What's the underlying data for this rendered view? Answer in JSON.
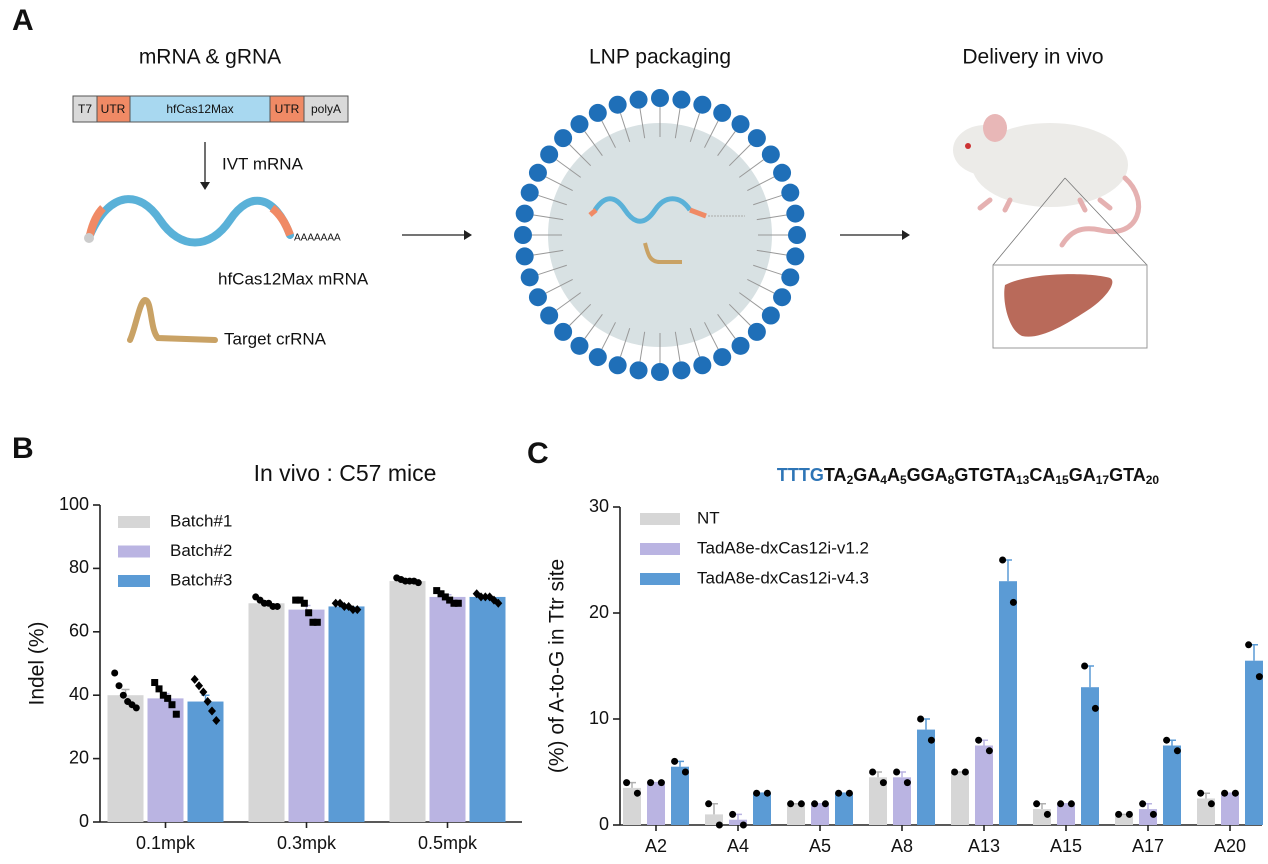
{
  "panel_a": {
    "label": "A",
    "steps": [
      "mRNA & gRNA",
      "LNP packaging",
      "Delivery in vivo"
    ],
    "construct": [
      "T7",
      "UTR",
      "hfCas12Max",
      "UTR",
      "polyA"
    ],
    "ivt": "IVT mRNA",
    "tail": "AAAAAAA",
    "mrna": "hfCas12Max mRNA",
    "crna": "Target crRNA"
  },
  "panel_labels": [
    "B",
    "C"
  ],
  "chart_data": [
    {
      "type": "bar",
      "title": "In vivo : C57 mice",
      "ylabel": "Indel (%)",
      "categories": [
        "0.1mpk",
        "0.3mpk",
        "0.5mpk"
      ],
      "series": [
        {
          "name": "Batch#1",
          "color": "#d6d6d6",
          "marker": "circle",
          "values": [
            40,
            69,
            76
          ],
          "errors": [
            1.8,
            0.5,
            0.3
          ],
          "points": [
            [
              47,
              43,
              40,
              38,
              37,
              36
            ],
            [
              71,
              70,
              69,
              69,
              68,
              68
            ],
            [
              77,
              76.5,
              76,
              76,
              76,
              75.5
            ]
          ]
        },
        {
          "name": "Batch#2",
          "color": "#bab4e2",
          "marker": "square",
          "values": [
            39,
            67,
            71
          ],
          "errors": [
            1.5,
            1.3,
            0.7
          ],
          "points": [
            [
              44,
              42,
              40,
              39,
              37,
              34
            ],
            [
              70,
              70,
              69,
              66,
              63,
              63
            ],
            [
              73,
              72,
              71,
              70,
              69,
              69
            ]
          ]
        },
        {
          "name": "Batch#3",
          "color": "#5b9bd5",
          "marker": "diamond",
          "values": [
            38,
            68,
            71
          ],
          "errors": [
            2,
            0.4,
            0.4
          ],
          "points": [
            [
              45,
              43,
              41,
              38,
              35,
              32
            ],
            [
              69,
              69,
              68,
              68,
              67,
              67
            ],
            [
              72,
              71,
              71,
              71,
              70,
              69
            ]
          ]
        }
      ],
      "ylim": [
        0,
        100
      ],
      "yticks": [
        0,
        20,
        40,
        60,
        80,
        100
      ],
      "legend": "upper left"
    },
    {
      "type": "bar",
      "title_parts": [
        {
          "text": "TTTG",
          "color": "#2e75b6"
        },
        {
          "text": "TA"
        },
        {
          "text": "2",
          "sub": true
        },
        {
          "text": "GA"
        },
        {
          "text": "4",
          "sub": true
        },
        {
          "text": "A"
        },
        {
          "text": "5",
          "sub": true
        },
        {
          "text": "GGA"
        },
        {
          "text": "8",
          "sub": true
        },
        {
          "text": "GTGTA"
        },
        {
          "text": "13",
          "sub": true
        },
        {
          "text": "CA"
        },
        {
          "text": "15",
          "sub": true
        },
        {
          "text": "GA"
        },
        {
          "text": "17",
          "sub": true
        },
        {
          "text": "GTA"
        },
        {
          "text": "20",
          "sub": true
        }
      ],
      "ylabel": "(%) of A-to-G in Ttr site",
      "categories": [
        "A2",
        "A4",
        "A5",
        "A8",
        "A13",
        "A15",
        "A17",
        "A20"
      ],
      "series": [
        {
          "name": "NT",
          "color": "#d6d6d6",
          "marker": "circle",
          "values": [
            3.5,
            1,
            2,
            4.5,
            5,
            1.5,
            1,
            2.5
          ],
          "errors": [
            0.5,
            1,
            0,
            0.5,
            0,
            0.5,
            0,
            0.5
          ],
          "points": [
            [
              4,
              3
            ],
            [
              2,
              0
            ],
            [
              2,
              2
            ],
            [
              5,
              4
            ],
            [
              5,
              5
            ],
            [
              2,
              1
            ],
            [
              1,
              1
            ],
            [
              3,
              2
            ]
          ]
        },
        {
          "name": "TadA8e-dxCas12i-v1.2",
          "color": "#bab4e2",
          "marker": "circle",
          "values": [
            4,
            0.5,
            2,
            4.5,
            7.5,
            2,
            1.5,
            3
          ],
          "errors": [
            0,
            0.5,
            0,
            0.5,
            0.5,
            0,
            0.5,
            0
          ],
          "points": [
            [
              4,
              4
            ],
            [
              1,
              0
            ],
            [
              2,
              2
            ],
            [
              5,
              4
            ],
            [
              8,
              7
            ],
            [
              2,
              2
            ],
            [
              2,
              1
            ],
            [
              3,
              3
            ]
          ]
        },
        {
          "name": "TadA8e-dxCas12i-v4.3",
          "color": "#5b9bd5",
          "marker": "circle",
          "values": [
            5.5,
            3,
            3,
            9,
            23,
            13,
            7.5,
            15.5
          ],
          "errors": [
            0.5,
            0,
            0,
            1,
            2,
            2,
            0.5,
            1.5
          ],
          "points": [
            [
              6,
              5
            ],
            [
              3,
              3
            ],
            [
              3,
              3
            ],
            [
              10,
              8
            ],
            [
              25,
              21
            ],
            [
              15,
              11
            ],
            [
              8,
              7
            ],
            [
              17,
              14
            ]
          ]
        }
      ],
      "ylim": [
        0,
        30
      ],
      "yticks": [
        0,
        10,
        20,
        30
      ],
      "legend": "upper left"
    }
  ]
}
